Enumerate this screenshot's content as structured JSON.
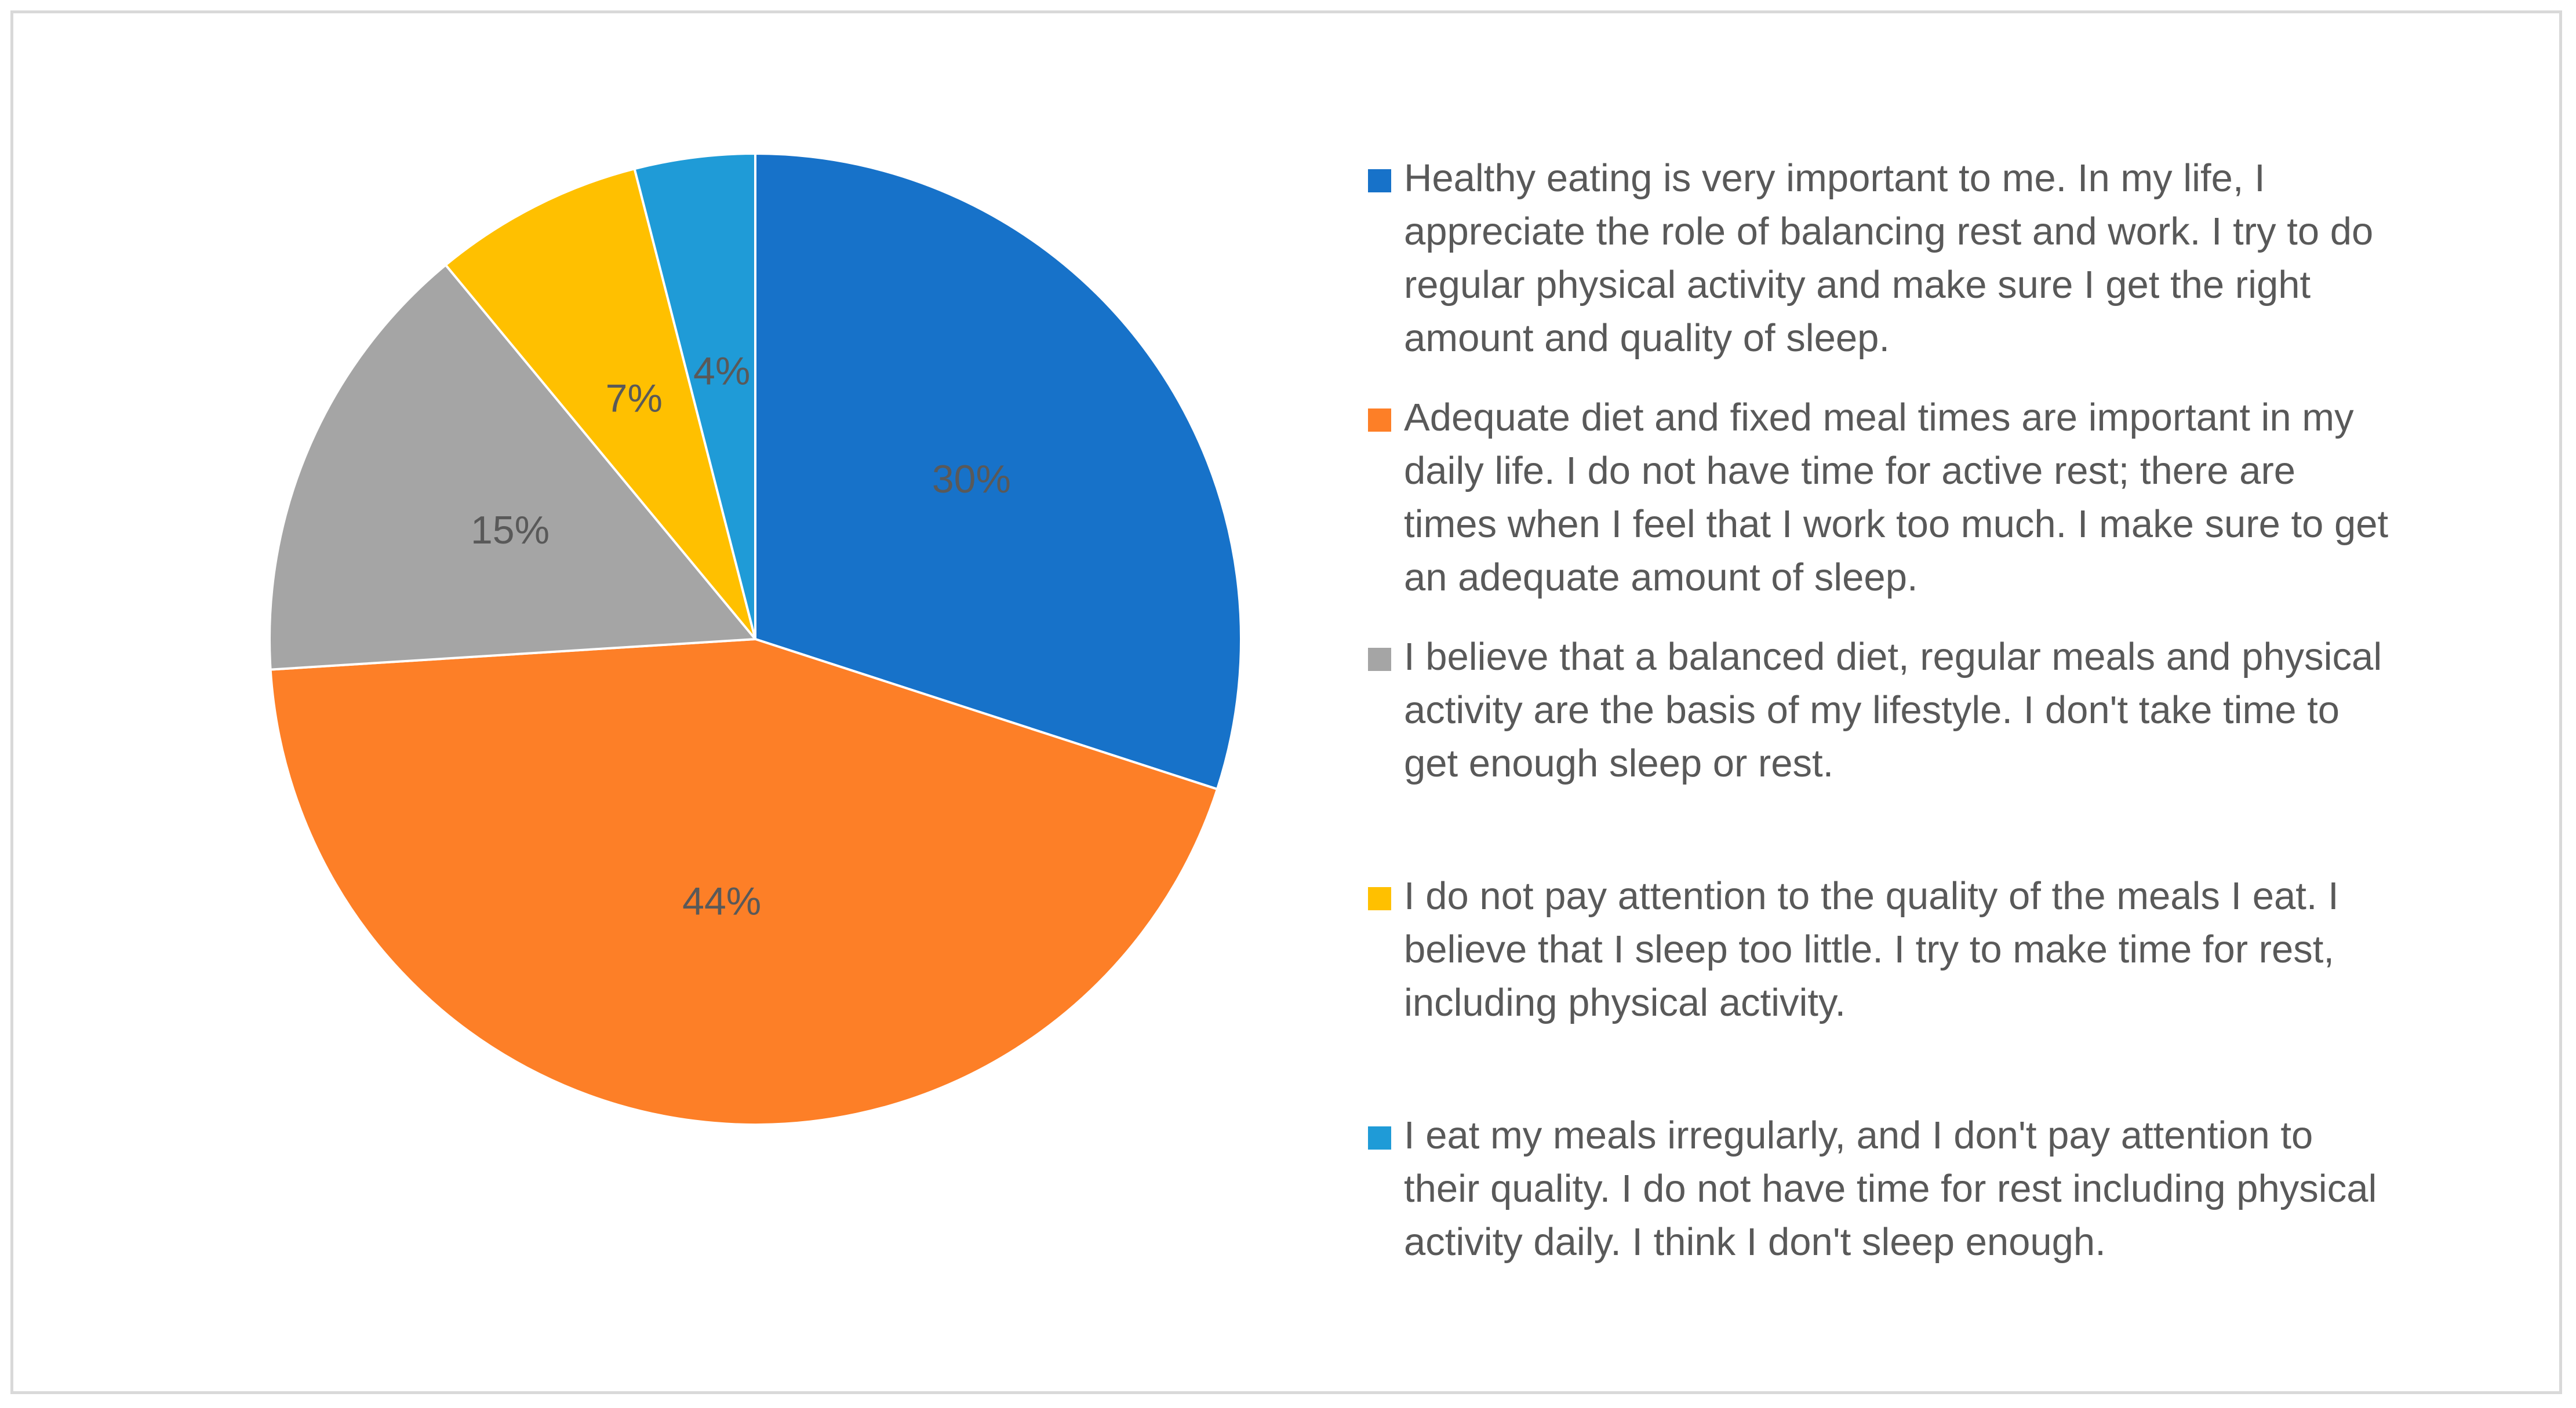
{
  "chart_data": {
    "type": "pie",
    "title": "",
    "start_angle_deg": 90,
    "direction": "clockwise",
    "slices": [
      {
        "label": "Healthy eating is very important to me. In my life, I appreciate the role of balancing rest and work. I try to do regular physical activity and make sure I get the right amount and quality of sleep.",
        "value": 30,
        "value_label": "30%",
        "color": "#1772c9"
      },
      {
        "label": "Adequate diet and fixed meal times are important in my daily life. I do not have time for active rest; there are times when I feel that I work too much. I make sure to get an adequate amount of sleep.",
        "value": 44,
        "value_label": "44%",
        "color": "#fd7f27"
      },
      {
        "label": "I believe that a balanced diet, regular meals and physical activity are the basis of my lifestyle. I don't take time to get enough sleep or rest.",
        "value": 15,
        "value_label": "15%",
        "color": "#a5a5a5"
      },
      {
        "label": "I do not pay attention to the quality of the meals I eat. I believe that I sleep too little. I try to make time for rest, including physical activity.",
        "value": 7,
        "value_label": "7%",
        "color": "#ffc000"
      },
      {
        "label": "I eat my meals irregularly, and I don't pay attention to their quality. I do not have time for rest including physical activity daily. I think I don't sleep enough.",
        "value": 4,
        "value_label": "4%",
        "color": "#1f9bd7"
      }
    ],
    "legend": {
      "position": "right",
      "entries": [
        "Healthy eating is very important to me. In my life, I\nappreciate the role of balancing rest and work. I try to do\nregular physical activity and make sure I get the right\namount and quality of sleep.",
        "Adequate diet and fixed meal times are important in my\ndaily life. I do not have time for active rest; there are\ntimes when I feel that I work too much. I make sure to get\nan adequate amount of sleep.",
        "I believe that a balanced diet, regular meals and physical\nactivity are the basis of my lifestyle. I don't take time to\nget enough sleep or rest.",
        "I do not pay attention to the quality of the meals I eat. I\nbelieve that I sleep too little. I try to make time for rest,\nincluding physical activity.",
        "I eat my meals irregularly, and I don't pay attention to\ntheir quality. I do not have time for rest including physical\nactivity daily. I think I don't sleep enough."
      ]
    }
  }
}
